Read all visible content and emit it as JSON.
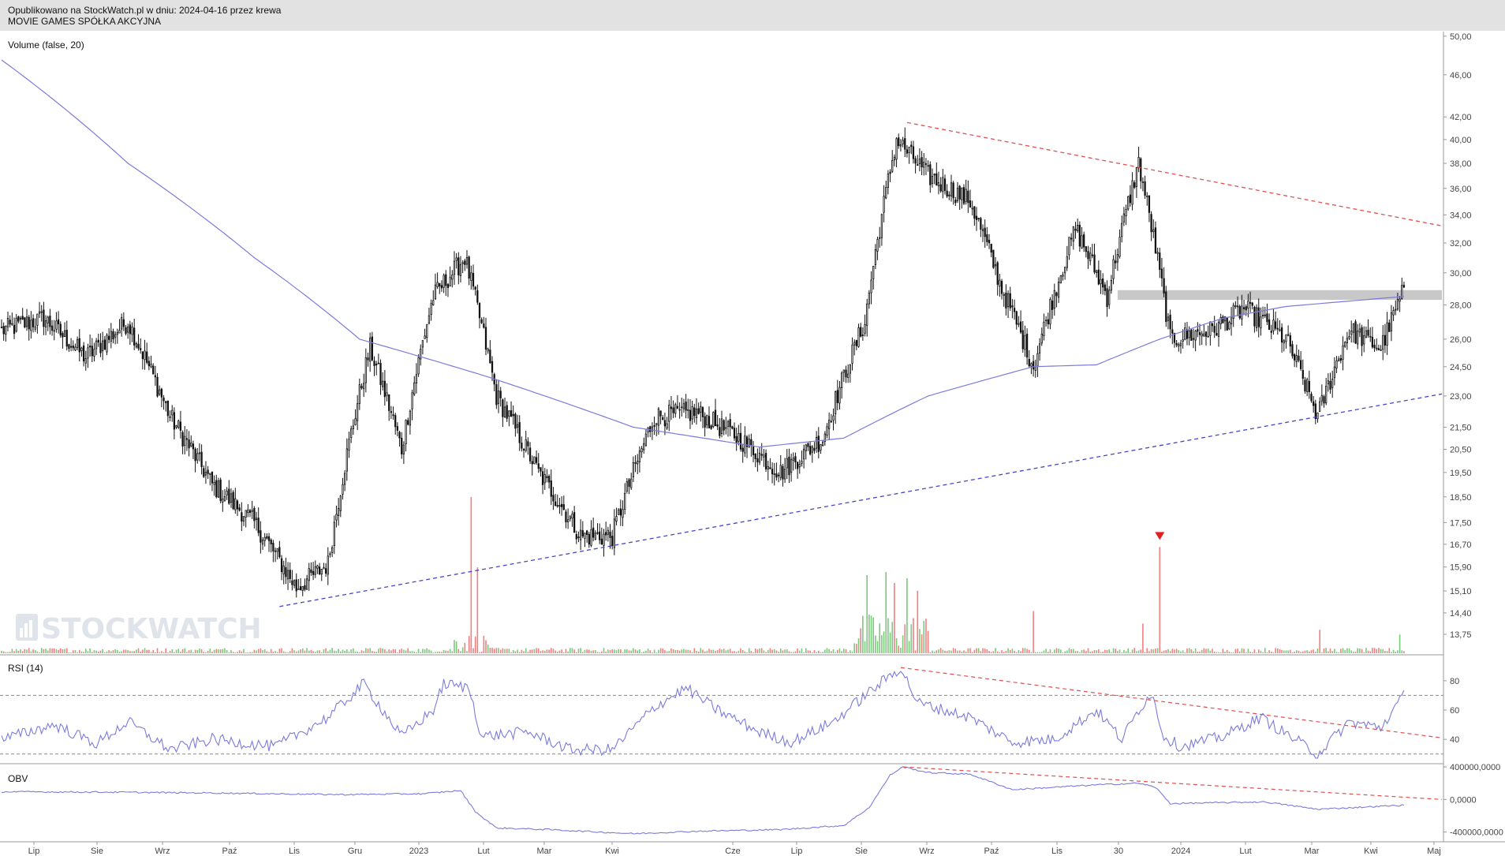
{
  "header": {
    "published": "Opublikowano na StockWatch.pl w dniu: 2024-04-16 przez krewa",
    "instrument": "MOVIE GAMES SPÓŁKA AKCYJNA"
  },
  "watermark": "STOCKWATCH",
  "colors": {
    "up_volume": "#7bc87b",
    "down_volume": "#f07f7f",
    "ma_line": "#7b7bdc",
    "resistance": "#e05050",
    "support": "#4646c8",
    "zone": "#c8c8c8",
    "candle": "#111111"
  },
  "chart_data": [
    {
      "type": "candlestick",
      "panel": "price",
      "label": "Volume (false, 20)",
      "scale": "log",
      "ylim": [
        13.2,
        50.5
      ],
      "y_ticks": [
        "50,00",
        "46,00",
        "42,00",
        "40,00",
        "38,00",
        "36,00",
        "34,00",
        "32,00",
        "30,00",
        "28,00",
        "26,00",
        "24,50",
        "23,00",
        "21,50",
        "20,50",
        "19,50",
        "18,50",
        "17,50",
        "16,70",
        "15,90",
        "15,10",
        "14,40",
        "13,75"
      ],
      "x_ticks": [
        "Lip",
        "Sie",
        "Wrz",
        "Paź",
        "Lis",
        "Gru",
        "2023",
        "Lut",
        "Mar",
        "Kwi",
        "Cze",
        "Lip",
        "Sie",
        "Wrz",
        "Paź",
        "Lis",
        "30",
        "2024",
        "Lut",
        "Mar",
        "Kwi",
        "Maj"
      ],
      "price_anchors": [
        {
          "i": 0,
          "p": 26.5
        },
        {
          "i": 20,
          "p": 27.2
        },
        {
          "i": 40,
          "p": 25.0
        },
        {
          "i": 60,
          "p": 27.0
        },
        {
          "i": 80,
          "p": 22.0
        },
        {
          "i": 100,
          "p": 19.0
        },
        {
          "i": 120,
          "p": 17.5
        },
        {
          "i": 140,
          "p": 15.2
        },
        {
          "i": 155,
          "p": 16.0
        },
        {
          "i": 175,
          "p": 25.5
        },
        {
          "i": 190,
          "p": 20.5
        },
        {
          "i": 205,
          "p": 28.5
        },
        {
          "i": 220,
          "p": 31.0
        },
        {
          "i": 235,
          "p": 23.0
        },
        {
          "i": 255,
          "p": 19.5
        },
        {
          "i": 275,
          "p": 17.0
        },
        {
          "i": 290,
          "p": 17.0
        },
        {
          "i": 310,
          "p": 22.0
        },
        {
          "i": 330,
          "p": 22.2
        },
        {
          "i": 350,
          "p": 21.0
        },
        {
          "i": 370,
          "p": 19.5
        },
        {
          "i": 390,
          "p": 21.0
        },
        {
          "i": 410,
          "p": 27.0
        },
        {
          "i": 425,
          "p": 40.0
        },
        {
          "i": 440,
          "p": 37.0
        },
        {
          "i": 460,
          "p": 35.0
        },
        {
          "i": 475,
          "p": 29.0
        },
        {
          "i": 490,
          "p": 24.5
        },
        {
          "i": 510,
          "p": 33.0
        },
        {
          "i": 525,
          "p": 28.5
        },
        {
          "i": 540,
          "p": 38.0
        },
        {
          "i": 555,
          "p": 26.0
        },
        {
          "i": 575,
          "p": 26.5
        },
        {
          "i": 590,
          "p": 27.8
        },
        {
          "i": 610,
          "p": 26.0
        },
        {
          "i": 625,
          "p": 22.0
        },
        {
          "i": 640,
          "p": 26.5
        },
        {
          "i": 655,
          "p": 25.5
        },
        {
          "i": 665,
          "p": 28.6
        }
      ],
      "moving_average": [
        {
          "i": 0,
          "p": 47.5
        },
        {
          "i": 60,
          "p": 38.0
        },
        {
          "i": 120,
          "p": 31.0
        },
        {
          "i": 170,
          "p": 26.0
        },
        {
          "i": 230,
          "p": 24.0
        },
        {
          "i": 300,
          "p": 21.5
        },
        {
          "i": 360,
          "p": 20.6
        },
        {
          "i": 400,
          "p": 21.0
        },
        {
          "i": 440,
          "p": 23.0
        },
        {
          "i": 490,
          "p": 24.5
        },
        {
          "i": 520,
          "p": 24.6
        },
        {
          "i": 550,
          "p": 26.0
        },
        {
          "i": 580,
          "p": 27.2
        },
        {
          "i": 610,
          "p": 27.9
        },
        {
          "i": 665,
          "p": 28.5
        }
      ],
      "lines": {
        "resistance": {
          "from": {
            "i": 430,
            "p": 41.5
          },
          "to": {
            "i": 684,
            "p": 33.2
          }
        },
        "support": {
          "from": {
            "i": 132,
            "p": 14.6
          },
          "to": {
            "i": 684,
            "p": 23.1
          }
        }
      },
      "zone": {
        "from_i": 530,
        "to_i": 684,
        "low": 28.3,
        "high": 28.9
      },
      "volume_spikes": [
        {
          "i": 223,
          "h": 1.0,
          "up": false
        },
        {
          "i": 226,
          "h": 0.55,
          "up": false
        },
        {
          "i": 411,
          "h": 0.5,
          "up": true
        },
        {
          "i": 420,
          "h": 0.52,
          "up": true
        },
        {
          "i": 424,
          "h": 0.45,
          "up": false
        },
        {
          "i": 430,
          "h": 0.48,
          "up": true
        },
        {
          "i": 435,
          "h": 0.4,
          "up": false
        },
        {
          "i": 490,
          "h": 0.27,
          "up": false
        },
        {
          "i": 542,
          "h": 0.19,
          "up": false
        },
        {
          "i": 550,
          "h": 0.68,
          "up": false
        },
        {
          "i": 626,
          "h": 0.15,
          "up": false
        },
        {
          "i": 664,
          "h": 0.12,
          "up": true
        }
      ],
      "signal_marker_i": 550
    },
    {
      "type": "line",
      "panel": "rsi",
      "label": "RSI (14)",
      "ylim": [
        25,
        95
      ],
      "y_ticks": [
        "80",
        "60",
        "40"
      ],
      "levels": [
        70,
        30
      ],
      "anchors": [
        {
          "i": 0,
          "v": 40
        },
        {
          "i": 25,
          "v": 50
        },
        {
          "i": 45,
          "v": 37
        },
        {
          "i": 60,
          "v": 52
        },
        {
          "i": 80,
          "v": 33
        },
        {
          "i": 100,
          "v": 40
        },
        {
          "i": 130,
          "v": 35
        },
        {
          "i": 155,
          "v": 55
        },
        {
          "i": 172,
          "v": 78
        },
        {
          "i": 190,
          "v": 42
        },
        {
          "i": 205,
          "v": 60
        },
        {
          "i": 210,
          "v": 78
        },
        {
          "i": 222,
          "v": 75
        },
        {
          "i": 228,
          "v": 42
        },
        {
          "i": 250,
          "v": 45
        },
        {
          "i": 270,
          "v": 33
        },
        {
          "i": 290,
          "v": 33
        },
        {
          "i": 310,
          "v": 62
        },
        {
          "i": 325,
          "v": 75
        },
        {
          "i": 340,
          "v": 60
        },
        {
          "i": 360,
          "v": 45
        },
        {
          "i": 375,
          "v": 38
        },
        {
          "i": 395,
          "v": 52
        },
        {
          "i": 410,
          "v": 70
        },
        {
          "i": 427,
          "v": 89
        },
        {
          "i": 435,
          "v": 65
        },
        {
          "i": 460,
          "v": 55
        },
        {
          "i": 480,
          "v": 38
        },
        {
          "i": 500,
          "v": 40
        },
        {
          "i": 520,
          "v": 60
        },
        {
          "i": 532,
          "v": 40
        },
        {
          "i": 540,
          "v": 60
        },
        {
          "i": 546,
          "v": 72
        },
        {
          "i": 552,
          "v": 42
        },
        {
          "i": 560,
          "v": 35
        },
        {
          "i": 580,
          "v": 42
        },
        {
          "i": 598,
          "v": 55
        },
        {
          "i": 612,
          "v": 42
        },
        {
          "i": 625,
          "v": 30
        },
        {
          "i": 640,
          "v": 52
        },
        {
          "i": 655,
          "v": 48
        },
        {
          "i": 666,
          "v": 70
        }
      ],
      "trendline": {
        "from": {
          "i": 427,
          "v": 89
        },
        "to": {
          "i": 684,
          "v": 41
        }
      }
    },
    {
      "type": "line",
      "panel": "obv",
      "label": "OBV",
      "ylim": [
        -520000,
        420000
      ],
      "y_ticks": [
        "400000,0000",
        "0,0000",
        "-400000,0000"
      ],
      "tick_values": [
        400000,
        0,
        -400000
      ],
      "anchors": [
        {
          "i": 0,
          "v": 95000
        },
        {
          "i": 50,
          "v": 90000
        },
        {
          "i": 100,
          "v": 80000
        },
        {
          "i": 160,
          "v": 60000
        },
        {
          "i": 200,
          "v": 70000
        },
        {
          "i": 218,
          "v": 110000
        },
        {
          "i": 225,
          "v": -150000
        },
        {
          "i": 235,
          "v": -350000
        },
        {
          "i": 260,
          "v": -370000
        },
        {
          "i": 300,
          "v": -420000
        },
        {
          "i": 330,
          "v": -390000
        },
        {
          "i": 370,
          "v": -370000
        },
        {
          "i": 400,
          "v": -320000
        },
        {
          "i": 412,
          "v": -100000
        },
        {
          "i": 422,
          "v": 300000
        },
        {
          "i": 428,
          "v": 400000
        },
        {
          "i": 440,
          "v": 330000
        },
        {
          "i": 460,
          "v": 310000
        },
        {
          "i": 480,
          "v": 120000
        },
        {
          "i": 520,
          "v": 180000
        },
        {
          "i": 540,
          "v": 200000
        },
        {
          "i": 548,
          "v": 150000
        },
        {
          "i": 555,
          "v": -50000
        },
        {
          "i": 600,
          "v": -30000
        },
        {
          "i": 625,
          "v": -120000
        },
        {
          "i": 666,
          "v": -70000
        }
      ],
      "trendline": {
        "from": {
          "i": 428,
          "v": 400000
        },
        "to": {
          "i": 684,
          "v": 0
        }
      }
    }
  ]
}
